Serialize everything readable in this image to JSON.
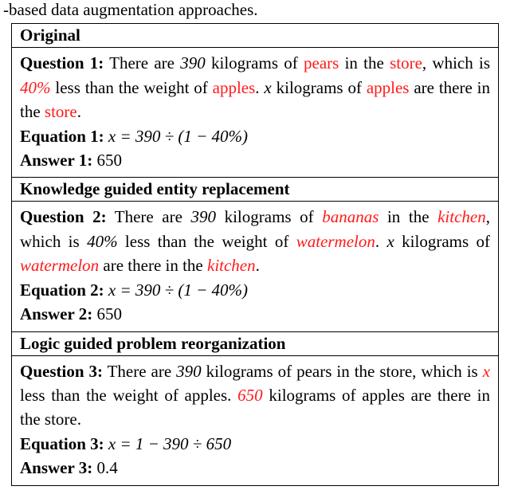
{
  "cutoff_text": "-based data augmentation approaches.",
  "sections": [
    {
      "header": "Original",
      "q_label": "Question 1:",
      "q_parts": [
        {
          "t": " There are "
        },
        {
          "t": "390",
          "cls": "ital"
        },
        {
          "t": " kilograms of "
        },
        {
          "t": "pears",
          "cls": "red"
        },
        {
          "t": " in the "
        },
        {
          "t": "store",
          "cls": "red"
        },
        {
          "t": ", which is "
        },
        {
          "t": "40%",
          "cls": "redi"
        },
        {
          "t": " less than the weight of "
        },
        {
          "t": "apples",
          "cls": "red"
        },
        {
          "t": ". "
        },
        {
          "t": "x",
          "cls": "ital"
        },
        {
          "t": " kilograms of "
        },
        {
          "t": "apples",
          "cls": "red"
        },
        {
          "t": " are there in the "
        },
        {
          "t": "store",
          "cls": "red"
        },
        {
          "t": "."
        }
      ],
      "eq_label": "Equation 1:",
      "eq_text": " x = 390 ÷ (1 − 40%)",
      "ans_label": "Answer 1:",
      "ans_text": " 650"
    },
    {
      "header": "Knowledge guided entity replacement",
      "q_label": "Question 2:",
      "q_parts": [
        {
          "t": " There are "
        },
        {
          "t": "390",
          "cls": "ital"
        },
        {
          "t": " kilograms of "
        },
        {
          "t": "bananas",
          "cls": "redi"
        },
        {
          "t": " in the "
        },
        {
          "t": "kitchen",
          "cls": "redi"
        },
        {
          "t": ", which is "
        },
        {
          "t": "40%",
          "cls": "ital"
        },
        {
          "t": " less than the weight of "
        },
        {
          "t": "watermelon",
          "cls": "redi"
        },
        {
          "t": ". "
        },
        {
          "t": "x",
          "cls": "ital"
        },
        {
          "t": " kilograms of "
        },
        {
          "t": "watermelon",
          "cls": "redi"
        },
        {
          "t": " are there in the "
        },
        {
          "t": "kitchen",
          "cls": "redi"
        },
        {
          "t": "."
        }
      ],
      "eq_label": "Equation 2:",
      "eq_text": " x = 390 ÷ (1 − 40%)",
      "ans_label": "Answer 2:",
      "ans_text": " 650"
    },
    {
      "header": "Logic guided problem reorganization",
      "q_label": "Question 3:",
      "q_parts": [
        {
          "t": " There are "
        },
        {
          "t": "390",
          "cls": "ital"
        },
        {
          "t": " kilograms of pears in the store, which is "
        },
        {
          "t": "x",
          "cls": "redi"
        },
        {
          "t": " less than the weight of apples. "
        },
        {
          "t": "650",
          "cls": "redi"
        },
        {
          "t": " kilograms of apples are there in the store."
        }
      ],
      "eq_label": "Equation 3:",
      "eq_text": " x = 1 − 390 ÷ 650",
      "ans_label": "Answer 3:",
      "ans_text": " 0.4"
    }
  ]
}
